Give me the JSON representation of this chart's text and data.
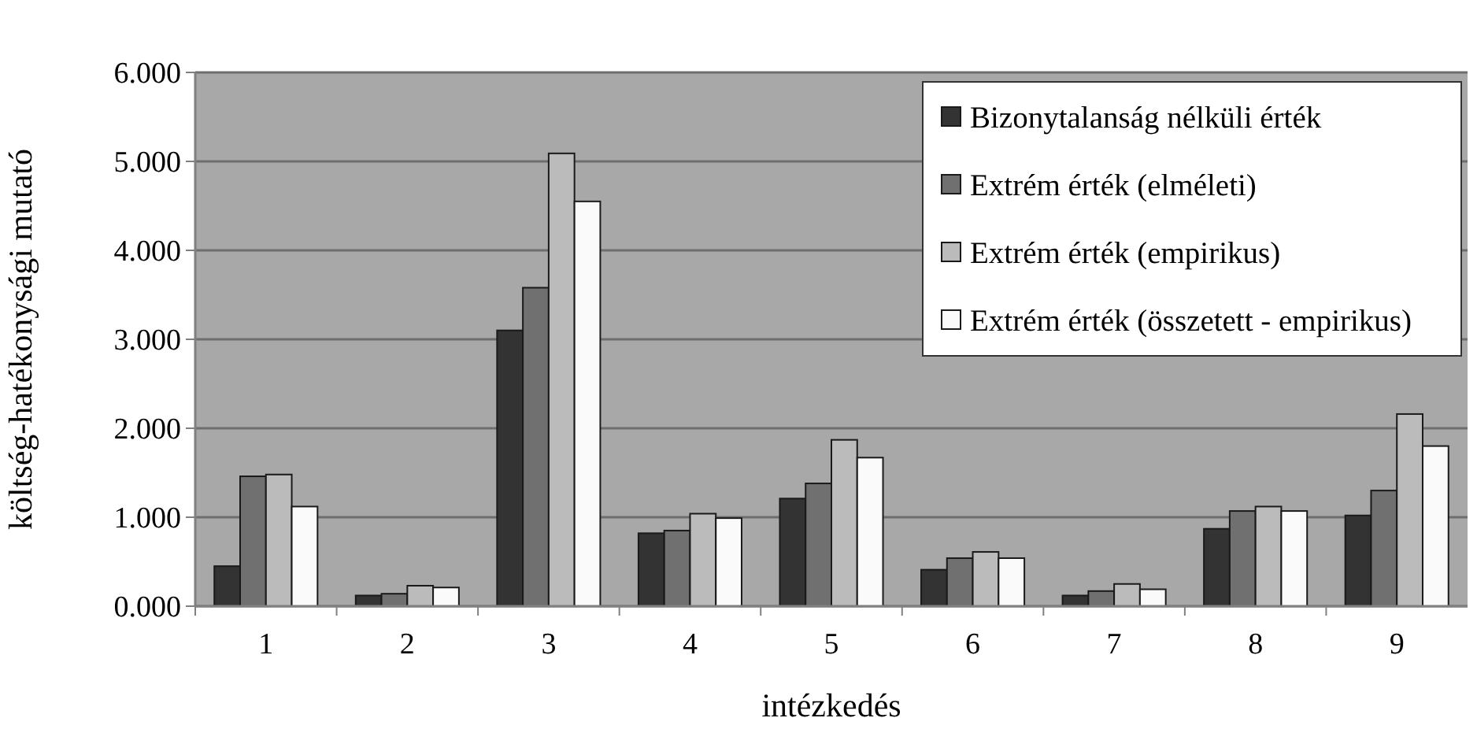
{
  "chart_data": {
    "type": "bar",
    "xlabel": "intézkedés",
    "ylabel": "költség-hatékonysági mutató",
    "categories": [
      "1",
      "2",
      "3",
      "4",
      "5",
      "6",
      "7",
      "8",
      "9"
    ],
    "series": [
      {
        "name": "Bizonytalanság nélküli érték",
        "color": "#333333",
        "values": [
          0.45,
          0.12,
          3.1,
          0.82,
          1.21,
          0.41,
          0.12,
          0.87,
          1.02
        ]
      },
      {
        "name": "Extrém érték (elméleti)",
        "color": "#707070",
        "values": [
          1.46,
          0.14,
          3.58,
          0.85,
          1.38,
          0.54,
          0.17,
          1.07,
          1.3
        ]
      },
      {
        "name": "Extrém érték (empirikus)",
        "color": "#bbbbbb",
        "values": [
          1.48,
          0.23,
          5.09,
          1.04,
          1.87,
          0.61,
          0.25,
          1.12,
          2.16
        ]
      },
      {
        "name": "Extrém érték (összetett - empirikus)",
        "color": "#fafafa",
        "values": [
          1.12,
          0.21,
          4.55,
          0.99,
          1.67,
          0.54,
          0.19,
          1.07,
          1.8
        ]
      }
    ],
    "ylim": [
      0,
      6
    ],
    "yticks": [
      {
        "value": 0,
        "label": "0.000"
      },
      {
        "value": 1,
        "label": "1.000"
      },
      {
        "value": 2,
        "label": "2.000"
      },
      {
        "value": 3,
        "label": "3.000"
      },
      {
        "value": 4,
        "label": "4.000"
      },
      {
        "value": 5,
        "label": "5.000"
      },
      {
        "value": 6,
        "label": "6.000"
      }
    ],
    "grid": "y",
    "legend": "top right"
  }
}
